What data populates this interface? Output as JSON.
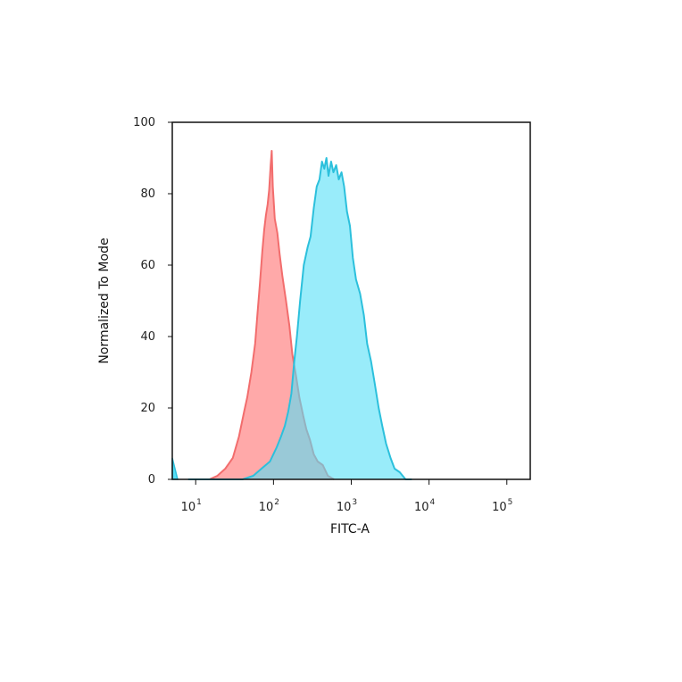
{
  "chart_data": {
    "type": "area",
    "xlabel": "FITC-A",
    "ylabel": "Normalized To Mode",
    "x_scale": "log",
    "xlim": [
      5,
      200000
    ],
    "ylim": [
      0,
      100
    ],
    "y_ticks": [
      0,
      20,
      40,
      60,
      80,
      100
    ],
    "x_ticks": [
      {
        "value": 10,
        "base": "10",
        "exp": "1"
      },
      {
        "value": 100,
        "base": "10",
        "exp": "2"
      },
      {
        "value": 1000,
        "base": "10",
        "exp": "3"
      },
      {
        "value": 10000,
        "base": "10",
        "exp": "4"
      },
      {
        "value": 100000,
        "base": "10",
        "exp": "5"
      }
    ],
    "grid": false,
    "series": [
      {
        "color": "#f26d6d",
        "fill": "#ff9a9a",
        "points": [
          [
            10,
            0
          ],
          [
            15,
            0
          ],
          [
            19,
            1
          ],
          [
            24,
            3
          ],
          [
            30,
            6
          ],
          [
            36,
            12
          ],
          [
            42,
            19
          ],
          [
            46,
            23
          ],
          [
            52,
            30
          ],
          [
            58,
            38
          ],
          [
            62,
            46
          ],
          [
            67,
            55
          ],
          [
            72,
            64
          ],
          [
            76,
            70
          ],
          [
            80,
            74
          ],
          [
            84,
            77
          ],
          [
            88,
            81
          ],
          [
            92,
            88
          ],
          [
            95,
            92
          ],
          [
            98,
            82
          ],
          [
            104,
            73
          ],
          [
            112,
            69
          ],
          [
            120,
            63
          ],
          [
            130,
            57
          ],
          [
            145,
            50
          ],
          [
            160,
            43
          ],
          [
            175,
            35
          ],
          [
            195,
            29
          ],
          [
            215,
            23
          ],
          [
            240,
            18
          ],
          [
            265,
            14
          ],
          [
            295,
            11
          ],
          [
            330,
            7
          ],
          [
            370,
            5
          ],
          [
            430,
            4
          ],
          [
            500,
            1
          ],
          [
            600,
            0
          ]
        ]
      },
      {
        "color": "#2cc0dc",
        "fill": "#55dff7",
        "points": [
          [
            8,
            0
          ],
          [
            20,
            0
          ],
          [
            40,
            0
          ],
          [
            55,
            1
          ],
          [
            70,
            3
          ],
          [
            90,
            5
          ],
          [
            110,
            9
          ],
          [
            125,
            12
          ],
          [
            140,
            15
          ],
          [
            155,
            19
          ],
          [
            170,
            24
          ],
          [
            185,
            33
          ],
          [
            200,
            40
          ],
          [
            220,
            50
          ],
          [
            245,
            60
          ],
          [
            275,
            65
          ],
          [
            300,
            68
          ],
          [
            330,
            76
          ],
          [
            360,
            82
          ],
          [
            390,
            84
          ],
          [
            420,
            89
          ],
          [
            450,
            87
          ],
          [
            480,
            90
          ],
          [
            510,
            85
          ],
          [
            550,
            89
          ],
          [
            590,
            86
          ],
          [
            640,
            88
          ],
          [
            690,
            84
          ],
          [
            750,
            86
          ],
          [
            810,
            82
          ],
          [
            880,
            75
          ],
          [
            960,
            71
          ],
          [
            1050,
            62
          ],
          [
            1150,
            56
          ],
          [
            1300,
            52
          ],
          [
            1450,
            46
          ],
          [
            1600,
            38
          ],
          [
            1800,
            33
          ],
          [
            2000,
            27
          ],
          [
            2250,
            20
          ],
          [
            2500,
            15
          ],
          [
            2800,
            10
          ],
          [
            3200,
            6
          ],
          [
            3600,
            3
          ],
          [
            4200,
            2
          ],
          [
            5000,
            0
          ],
          [
            6000,
            0
          ]
        ]
      }
    ]
  }
}
